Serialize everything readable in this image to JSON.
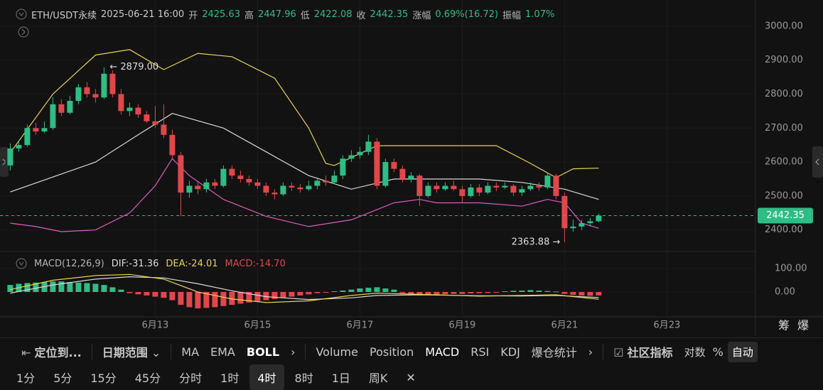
{
  "header": {
    "symbol": "ETH/USDT永续",
    "time": "2025-06-21 16:00",
    "items": [
      {
        "label": "开",
        "value": "2425.63"
      },
      {
        "label": "高",
        "value": "2447.96"
      },
      {
        "label": "低",
        "value": "2422.08"
      },
      {
        "label": "收",
        "value": "2442.35"
      },
      {
        "label": "涨幅",
        "value": "0.69%(16.72)"
      },
      {
        "label": "振幅",
        "value": "1.07%"
      }
    ]
  },
  "chart_data": {
    "type": "candlestick",
    "up_color": "#2ebd85",
    "down_color": "#e0474b",
    "candles": [
      [
        2590,
        2655,
        2575,
        2640
      ],
      [
        2640,
        2665,
        2630,
        2650
      ],
      [
        2650,
        2710,
        2645,
        2700
      ],
      [
        2700,
        2715,
        2680,
        2690
      ],
      [
        2690,
        2720,
        2685,
        2700
      ],
      [
        2700,
        2790,
        2695,
        2770
      ],
      [
        2770,
        2785,
        2735,
        2745
      ],
      [
        2745,
        2795,
        2740,
        2780
      ],
      [
        2780,
        2830,
        2770,
        2820
      ],
      [
        2820,
        2835,
        2790,
        2800
      ],
      [
        2800,
        2815,
        2775,
        2790
      ],
      [
        2790,
        2879,
        2785,
        2860
      ],
      [
        2860,
        2870,
        2790,
        2800
      ],
      [
        2800,
        2815,
        2740,
        2750
      ],
      [
        2750,
        2775,
        2735,
        2760
      ],
      [
        2760,
        2770,
        2730,
        2740
      ],
      [
        2740,
        2750,
        2715,
        2720
      ],
      [
        2720,
        2765,
        2700,
        2710
      ],
      [
        2710,
        2770,
        2670,
        2680
      ],
      [
        2680,
        2695,
        2610,
        2620
      ],
      [
        2620,
        2630,
        2440,
        2510
      ],
      [
        2510,
        2545,
        2495,
        2530
      ],
      [
        2530,
        2540,
        2505,
        2520
      ],
      [
        2520,
        2550,
        2510,
        2540
      ],
      [
        2540,
        2550,
        2520,
        2530
      ],
      [
        2530,
        2590,
        2525,
        2580
      ],
      [
        2580,
        2590,
        2550,
        2560
      ],
      [
        2560,
        2575,
        2540,
        2550
      ],
      [
        2550,
        2560,
        2530,
        2540
      ],
      [
        2540,
        2550,
        2520,
        2530
      ],
      [
        2530,
        2540,
        2500,
        2510
      ],
      [
        2510,
        2520,
        2490,
        2505
      ],
      [
        2505,
        2540,
        2500,
        2530
      ],
      [
        2530,
        2540,
        2515,
        2525
      ],
      [
        2525,
        2535,
        2510,
        2520
      ],
      [
        2520,
        2545,
        2515,
        2530
      ],
      [
        2530,
        2555,
        2520,
        2545
      ],
      [
        2545,
        2560,
        2530,
        2540
      ],
      [
        2540,
        2575,
        2535,
        2560
      ],
      [
        2560,
        2620,
        2550,
        2610
      ],
      [
        2610,
        2635,
        2600,
        2620
      ],
      [
        2620,
        2645,
        2610,
        2630
      ],
      [
        2630,
        2680,
        2620,
        2660
      ],
      [
        2660,
        2670,
        2520,
        2530
      ],
      [
        2530,
        2610,
        2525,
        2600
      ],
      [
        2600,
        2610,
        2570,
        2580
      ],
      [
        2580,
        2590,
        2540,
        2550
      ],
      [
        2550,
        2570,
        2540,
        2560
      ],
      [
        2560,
        2565,
        2470,
        2500
      ],
      [
        2500,
        2540,
        2495,
        2530
      ],
      [
        2530,
        2540,
        2510,
        2520
      ],
      [
        2520,
        2540,
        2515,
        2530
      ],
      [
        2530,
        2545,
        2515,
        2520
      ],
      [
        2520,
        2530,
        2480,
        2500
      ],
      [
        2500,
        2535,
        2495,
        2525
      ],
      [
        2525,
        2535,
        2500,
        2510
      ],
      [
        2510,
        2540,
        2505,
        2530
      ],
      [
        2530,
        2540,
        2515,
        2525
      ],
      [
        2525,
        2540,
        2520,
        2530
      ],
      [
        2530,
        2535,
        2500,
        2510
      ],
      [
        2510,
        2530,
        2500,
        2520
      ],
      [
        2520,
        2540,
        2515,
        2530
      ],
      [
        2530,
        2540,
        2515,
        2525
      ],
      [
        2525,
        2570,
        2520,
        2560
      ],
      [
        2560,
        2565,
        2490,
        2500
      ],
      [
        2500,
        2510,
        2363.88,
        2405
      ],
      [
        2405,
        2430,
        2395,
        2410
      ],
      [
        2410,
        2430,
        2400,
        2420
      ],
      [
        2420,
        2435,
        2410,
        2425.63
      ],
      [
        2425.63,
        2447.96,
        2422.08,
        2442.35
      ]
    ],
    "xlim": [
      -1.2,
      87.3
    ],
    "xticks": [
      {
        "value": 17,
        "label": "6月13"
      },
      {
        "value": 29,
        "label": "6月15"
      },
      {
        "value": 41,
        "label": "6月17"
      },
      {
        "value": 53,
        "label": "6月19"
      },
      {
        "value": 65,
        "label": "6月21"
      },
      {
        "value": 77,
        "label": "6月23"
      }
    ],
    "ylim": [
      2345,
      3077
    ],
    "yticks": [
      {
        "value": 2400,
        "label": "2400.00"
      },
      {
        "value": 2500,
        "label": "2500.00"
      },
      {
        "value": 2600,
        "label": "2600.00"
      },
      {
        "value": 2700,
        "label": "2700.00"
      },
      {
        "value": 2800,
        "label": "2800.00"
      },
      {
        "value": 2900,
        "label": "2900.00"
      },
      {
        "value": 3000,
        "label": "3000.00"
      }
    ],
    "last_price": {
      "value": 2442.35,
      "label": "2442.35",
      "color": "#2ebd85"
    },
    "annotations": [
      {
        "x": 11,
        "value": 2879,
        "label": "← 2879.00",
        "side": "right"
      },
      {
        "x": 65,
        "value": 2363.88,
        "label": "2363.88 →",
        "side": "left"
      }
    ],
    "boll_upper": {
      "color": "#e8d44d",
      "x": [
        0,
        5,
        10,
        14,
        18,
        22,
        26,
        31,
        35,
        37,
        38,
        43,
        57,
        61,
        64,
        66,
        69
      ],
      "values": [
        2627,
        2800,
        2915,
        2931,
        2872,
        2920,
        2910,
        2847,
        2700,
        2596,
        2590,
        2648,
        2648,
        2596,
        2554,
        2580,
        2582
      ]
    },
    "boll_mid": {
      "color": "#d9d9d9",
      "x": [
        0,
        10,
        15,
        19,
        25,
        30,
        35,
        40,
        45,
        55,
        60,
        65,
        69
      ],
      "values": [
        2512,
        2600,
        2680,
        2743,
        2700,
        2630,
        2560,
        2520,
        2550,
        2550,
        2540,
        2520,
        2490
      ]
    },
    "boll_lower": {
      "color": "#e05bc0",
      "x": [
        0,
        3,
        6,
        10,
        14,
        17,
        19,
        21,
        25,
        30,
        35,
        40,
        45,
        48,
        50,
        55,
        60,
        63,
        65,
        67,
        69
      ],
      "values": [
        2420,
        2410,
        2395,
        2400,
        2450,
        2530,
        2610,
        2560,
        2490,
        2440,
        2410,
        2430,
        2480,
        2490,
        2480,
        2480,
        2470,
        2490,
        2480,
        2420,
        2405
      ]
    },
    "macd": {
      "title": "MACD(12,26,9)",
      "dif_label": "DIF:-31.36",
      "dea_label": "DEA:-24.01",
      "macd_label": "MACD:-14.70",
      "ylim": [
        -100,
        150
      ],
      "yticks": [
        {
          "value": 0,
          "label": "0.00"
        },
        {
          "value": 100,
          "label": "100.00"
        }
      ],
      "histogram": [
        30,
        35,
        38,
        40,
        42,
        45,
        45,
        42,
        40,
        38,
        35,
        30,
        20,
        10,
        -5,
        -10,
        -15,
        -20,
        -25,
        -35,
        -55,
        -65,
        -70,
        -68,
        -65,
        -60,
        -55,
        -50,
        -45,
        -40,
        -35,
        -30,
        -25,
        -20,
        -15,
        -10,
        -5,
        -2,
        3,
        6,
        10,
        15,
        18,
        20,
        15,
        10,
        -5,
        -8,
        -10,
        -12,
        -12,
        -10,
        -8,
        -8,
        -6,
        -5,
        -4,
        -3,
        3,
        5,
        6,
        8,
        6,
        4,
        2,
        -8,
        -12,
        -15,
        -16,
        -14.7
      ],
      "dif": {
        "color": "#e8d44d",
        "x": [
          0,
          5,
          10,
          14,
          18,
          22,
          26,
          30,
          35,
          40,
          43,
          48,
          55,
          60,
          64,
          69
        ],
        "values": [
          10,
          50,
          70,
          75,
          55,
          0,
          -30,
          -45,
          -38,
          -15,
          -5,
          -10,
          -18,
          -15,
          -12,
          -31.36
        ]
      },
      "dea": {
        "color": "#d9d9d9",
        "x": [
          0,
          5,
          10,
          14,
          18,
          22,
          26,
          30,
          35,
          40,
          43,
          48,
          55,
          60,
          64,
          69
        ],
        "values": [
          -5,
          30,
          55,
          65,
          60,
          35,
          5,
          -20,
          -32,
          -25,
          -15,
          -12,
          -16,
          -17,
          -15,
          -24.01
        ]
      }
    }
  },
  "side": [
    "筹",
    "爆"
  ],
  "toolbar": {
    "locate": "定位到...",
    "date_range": "日期范围",
    "main": [
      "MA",
      "EMA",
      "BOLL"
    ],
    "sub": [
      "Volume",
      "Position",
      "MACD",
      "RSI",
      "KDJ",
      "爆仓统计"
    ],
    "community": "社区指标",
    "log": "对数",
    "percent": "%",
    "auto": "自动"
  },
  "intervals": [
    "1分",
    "5分",
    "15分",
    "45分",
    "分时",
    "1时",
    "4时",
    "8时",
    "1日",
    "周K"
  ]
}
